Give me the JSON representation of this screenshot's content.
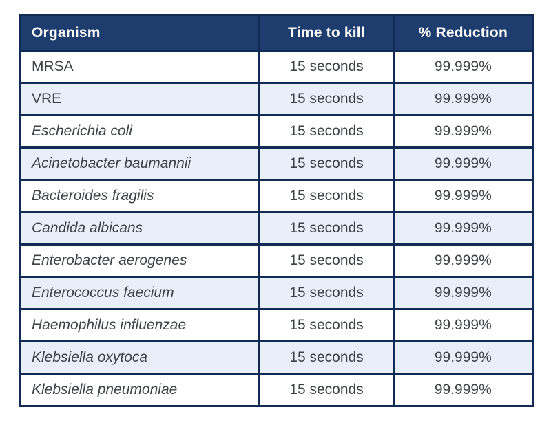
{
  "chart_data": {
    "type": "table",
    "columns": [
      "Organism",
      "Time to kill",
      "% Reduction"
    ],
    "rows": [
      [
        "MRSA",
        "15 seconds",
        "99.999%"
      ],
      [
        "VRE",
        "15 seconds",
        "99.999%"
      ],
      [
        "Escherichia coli",
        "15 seconds",
        "99.999%"
      ],
      [
        "Acinetobacter baumannii",
        "15 seconds",
        "99.999%"
      ],
      [
        "Bacteroides fragilis",
        "15 seconds",
        "99.999%"
      ],
      [
        "Candida albicans",
        "15 seconds",
        "99.999%"
      ],
      [
        "Enterobacter aerogenes",
        "15 seconds",
        "99.999%"
      ],
      [
        "Enterococcus faecium",
        "15 seconds",
        "99.999%"
      ],
      [
        "Haemophilus influenzae",
        "15 seconds",
        "99.999%"
      ],
      [
        "Klebsiella oxytoca",
        "15 seconds",
        "99.999%"
      ],
      [
        "Klebsiella pneumoniae",
        "15 seconds",
        "99.999%"
      ]
    ],
    "italic_rows": [
      false,
      false,
      true,
      true,
      true,
      true,
      true,
      true,
      true,
      true,
      true
    ],
    "layout": {
      "header_align": [
        "left",
        "center",
        "center"
      ],
      "body_align": [
        "left",
        "center",
        "center"
      ],
      "zebra_striping": true
    }
  },
  "colors": {
    "border": "#122b55",
    "header_bg": "#1e3d6e",
    "header_text": "#ffffff",
    "row_bg": "#ffffff",
    "row_alt_bg": "#e9eff9",
    "body_text": "#3d4247",
    "page_bg": "#ffffff"
  }
}
